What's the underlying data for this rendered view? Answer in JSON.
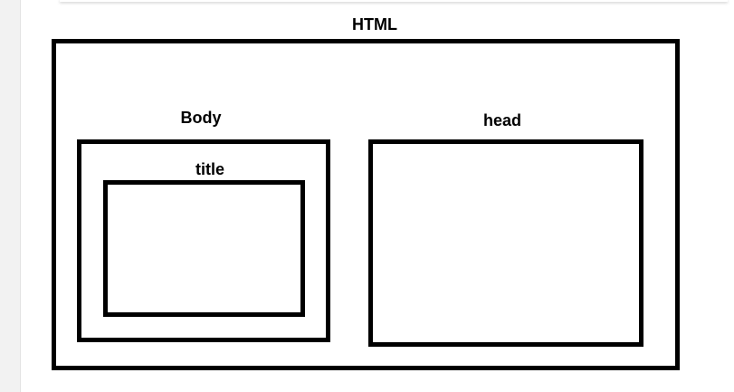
{
  "diagram": {
    "boxes": [
      {
        "id": "html",
        "label": "HTML"
      },
      {
        "id": "body",
        "label": "Body"
      },
      {
        "id": "title",
        "label": "title"
      },
      {
        "id": "head",
        "label": "head"
      }
    ]
  }
}
